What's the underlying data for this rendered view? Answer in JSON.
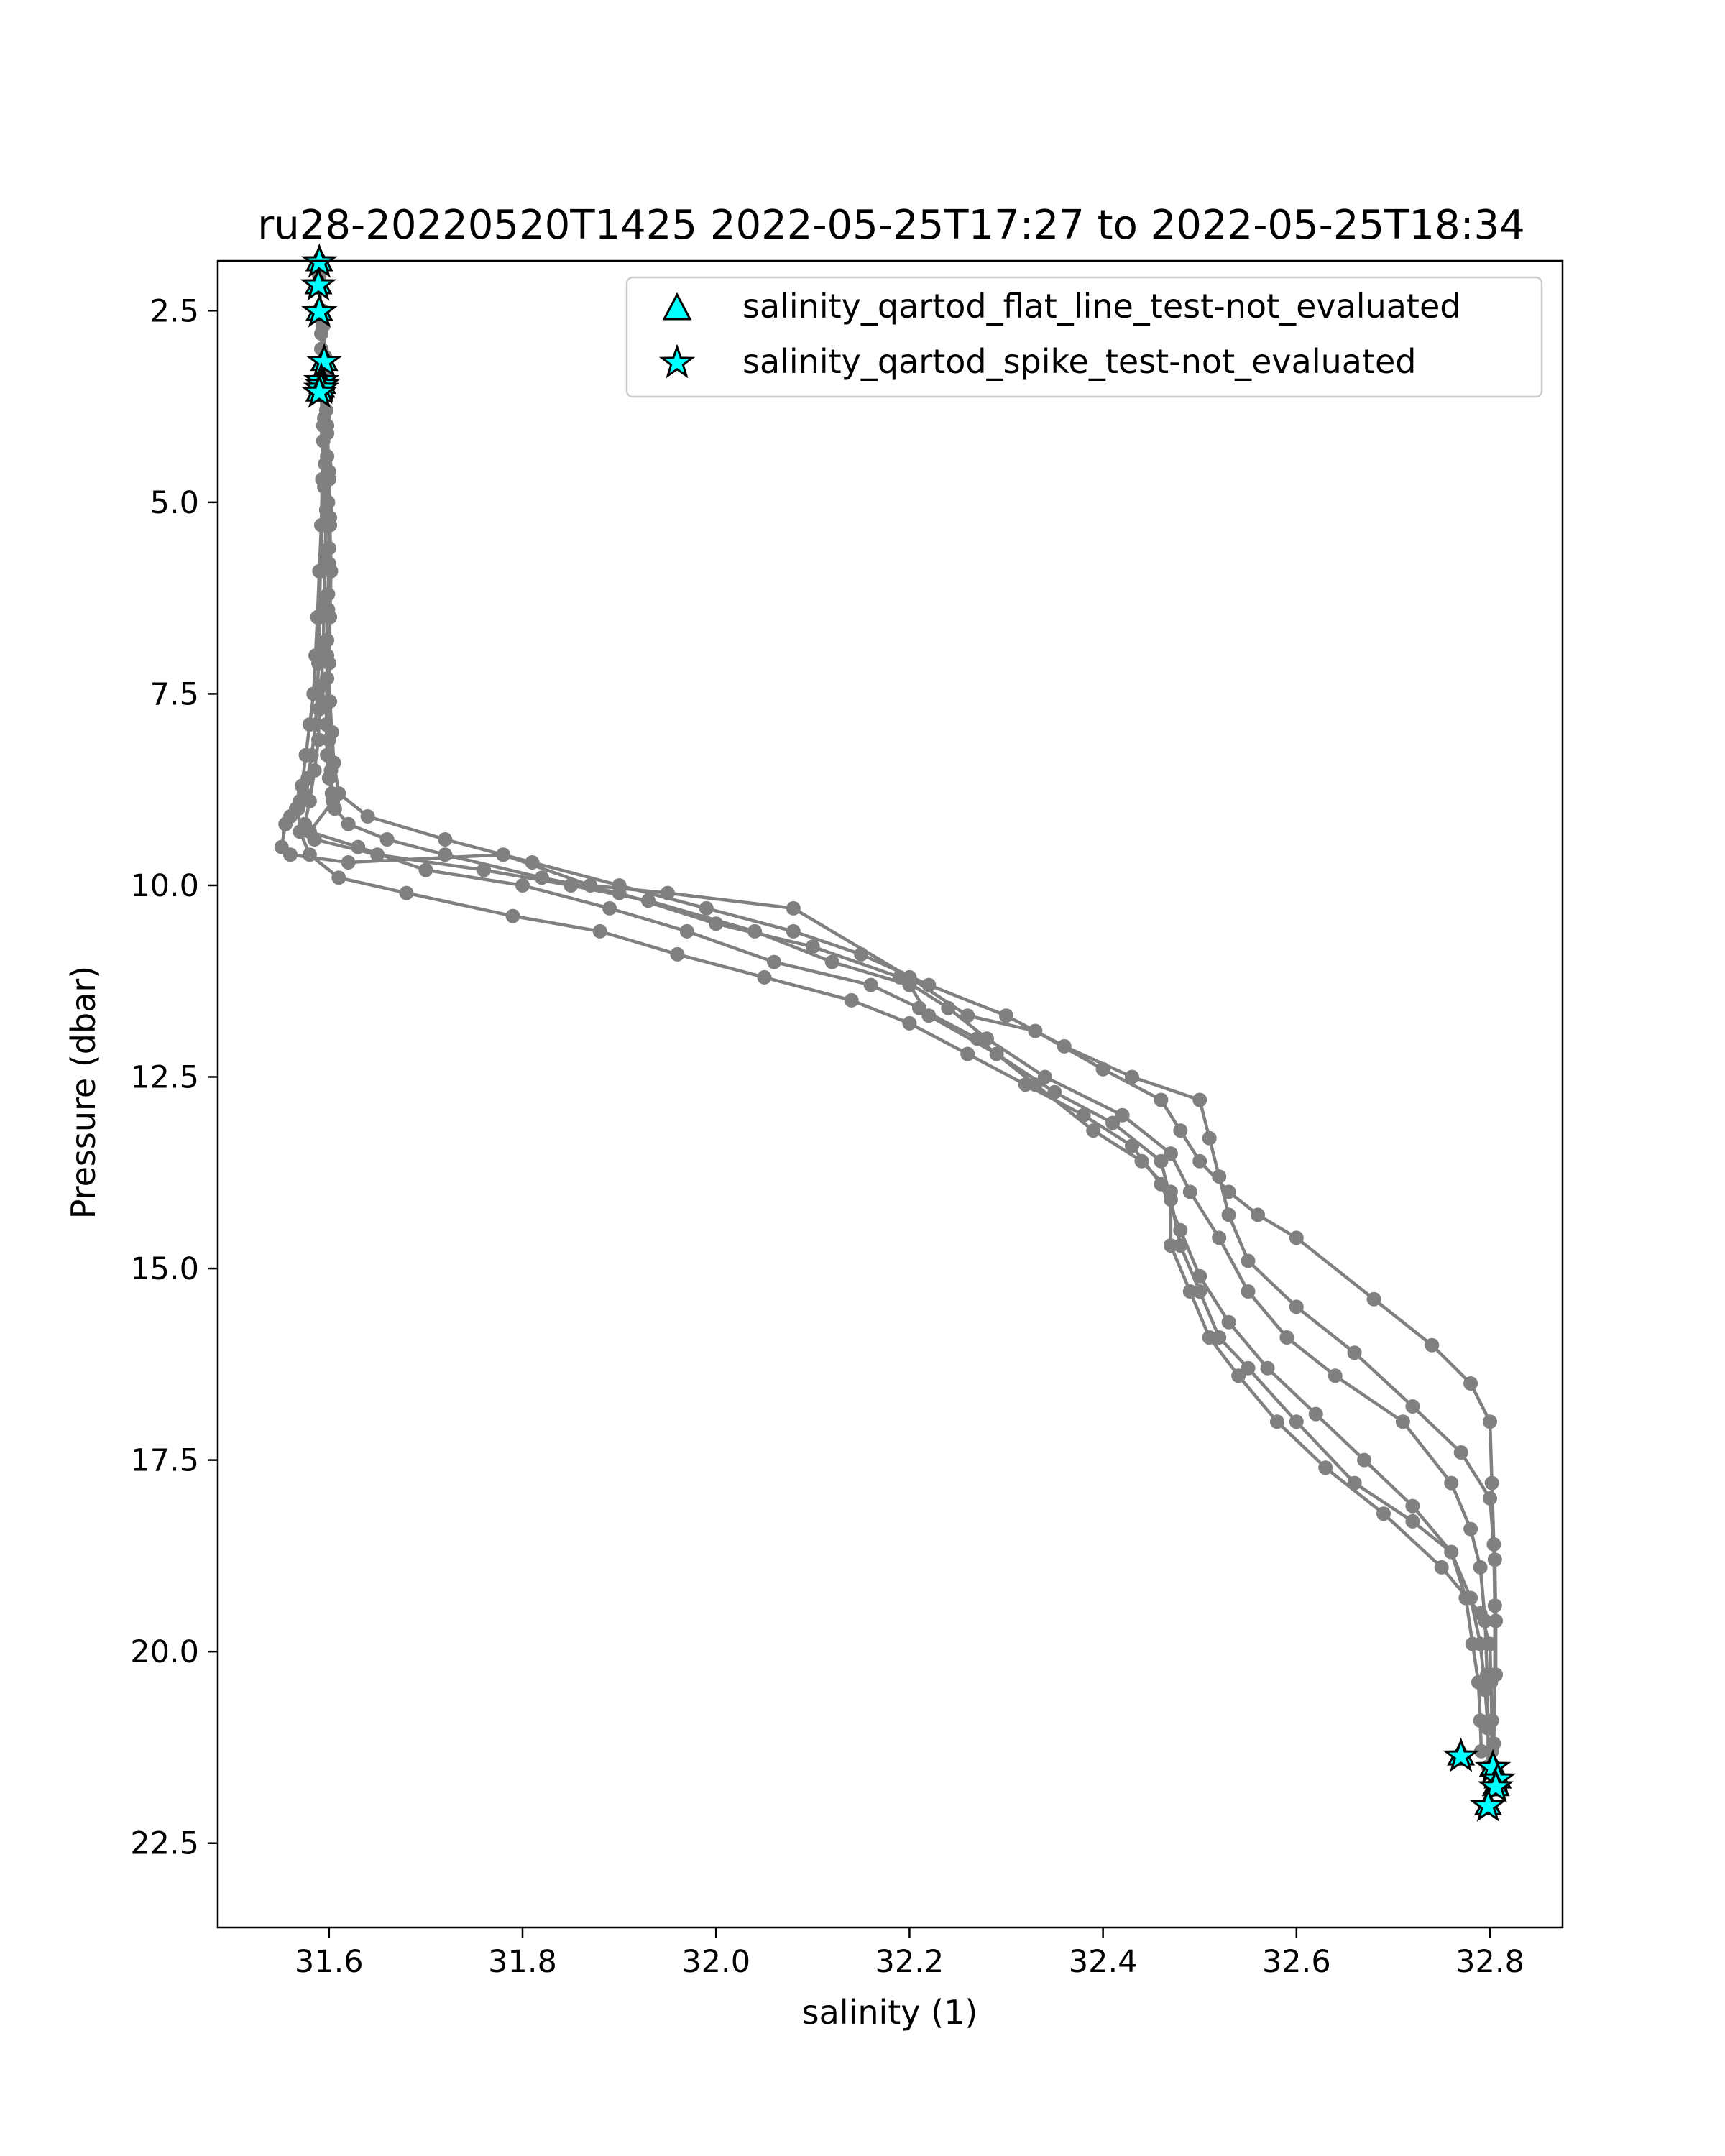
{
  "chart_data": {
    "type": "scatter",
    "title": "ru28-20220520T1425 2022-05-25T17:27 to 2022-05-25T18:34",
    "xlabel": "salinity (1)",
    "ylabel": "Pressure (dbar)",
    "xlim": [
      31.485,
      32.875
    ],
    "ylim": [
      1.85,
      23.6
    ],
    "y_inverted": true,
    "xticks": [
      31.6,
      31.8,
      32.0,
      32.2,
      32.4,
      32.6,
      32.8
    ],
    "xtick_labels": [
      "31.6",
      "31.8",
      "32.0",
      "32.2",
      "32.4",
      "32.6",
      "32.8"
    ],
    "yticks": [
      2.5,
      5.0,
      7.5,
      10.0,
      12.5,
      15.0,
      17.5,
      20.0,
      22.5
    ],
    "ytick_labels": [
      "2.5",
      "5.0",
      "7.5",
      "10.0",
      "12.5",
      "15.0",
      "17.5",
      "20.0",
      "22.5"
    ],
    "grid": false,
    "legend_position": "upper-right",
    "legend": [
      {
        "label": "salinity_qartod_flat_line_test-not_evaluated",
        "marker": "triangle",
        "color": "#00ffff"
      },
      {
        "label": "salinity_qartod_spike_test-not_evaluated",
        "marker": "star",
        "color": "#00ffff"
      }
    ],
    "profile_color": "#808080",
    "profiles": [
      {
        "salinity": [
          31.59,
          31.592,
          31.593,
          31.592,
          31.594,
          31.595,
          31.593,
          31.591,
          31.59,
          31.589,
          31.588,
          31.586,
          31.582,
          31.578,
          31.574,
          31.57,
          31.566,
          31.56,
          31.555,
          31.551,
          31.56,
          31.62,
          31.78,
          31.87,
          31.95,
          32.08,
          32.2,
          32.26,
          32.33,
          32.4,
          32.46,
          32.48,
          32.5,
          32.53,
          32.56,
          32.6,
          32.68,
          32.74,
          32.78,
          32.8,
          32.802,
          32.804,
          32.805,
          32.805,
          32.804,
          32.803
        ],
        "pressure": [
          2.05,
          2.6,
          3.2,
          3.6,
          4.2,
          4.8,
          5.3,
          5.9,
          6.5,
          7.1,
          7.5,
          7.9,
          8.3,
          8.6,
          8.8,
          8.9,
          9.0,
          9.1,
          9.2,
          9.5,
          9.6,
          9.7,
          9.6,
          10.0,
          10.1,
          10.3,
          11.2,
          11.7,
          11.9,
          12.4,
          12.8,
          13.2,
          13.6,
          14.0,
          14.3,
          14.6,
          15.4,
          16.0,
          16.5,
          17.0,
          17.8,
          18.6,
          19.4,
          20.3,
          21.2,
          21.8
        ]
      },
      {
        "salinity": [
          31.593,
          31.596,
          31.597,
          31.598,
          31.599,
          31.6,
          31.599,
          31.598,
          31.598,
          31.597,
          31.598,
          31.6,
          31.603,
          31.606,
          31.62,
          31.66,
          31.72,
          31.82,
          31.9,
          32.0,
          32.1,
          32.19,
          32.24,
          32.28,
          32.34,
          32.42,
          32.47,
          32.49,
          32.52,
          32.55,
          32.59,
          32.64,
          32.71,
          32.76,
          32.78,
          32.79,
          32.795,
          32.797,
          32.798,
          32.798
        ],
        "pressure": [
          2.5,
          3.1,
          3.8,
          4.4,
          5.0,
          5.6,
          6.2,
          6.8,
          7.3,
          7.9,
          8.3,
          8.6,
          8.8,
          9.0,
          9.2,
          9.4,
          9.6,
          9.9,
          10.1,
          10.5,
          10.8,
          11.2,
          11.6,
          12.0,
          12.5,
          13.0,
          13.5,
          14.0,
          14.6,
          15.3,
          15.9,
          16.4,
          17.0,
          17.8,
          18.4,
          18.9,
          19.6,
          20.3,
          21.0,
          21.5
        ]
      },
      {
        "salinity": [
          31.592,
          31.594,
          31.595,
          31.596,
          31.597,
          31.596,
          31.595,
          31.594,
          31.592,
          31.59,
          31.589,
          31.585,
          31.58,
          31.575,
          31.585,
          31.65,
          31.76,
          31.85,
          31.93,
          32.04,
          32.12,
          32.2,
          32.22,
          32.29,
          32.35,
          32.41,
          32.46,
          32.47,
          32.48,
          32.5,
          32.52,
          32.55,
          32.6,
          32.66,
          32.72,
          32.76,
          32.775,
          32.782,
          32.788,
          32.79,
          32.791
        ],
        "pressure": [
          3.0,
          3.4,
          3.9,
          4.5,
          5.1,
          5.7,
          6.3,
          6.9,
          7.4,
          7.7,
          8.1,
          8.5,
          8.9,
          9.2,
          9.4,
          9.6,
          9.8,
          10.0,
          10.2,
          10.6,
          11.0,
          11.3,
          11.7,
          12.2,
          12.7,
          13.1,
          13.6,
          14.1,
          14.7,
          15.3,
          15.9,
          16.3,
          17.0,
          17.8,
          18.3,
          18.7,
          19.3,
          19.9,
          20.4,
          20.9,
          21.3
        ]
      },
      {
        "salinity": [
          31.594,
          31.597,
          31.598,
          31.6,
          31.601,
          31.6,
          31.599,
          31.598,
          31.599,
          31.6,
          31.602,
          31.604,
          31.58,
          31.63,
          31.7,
          31.8,
          31.89,
          31.97,
          32.06,
          32.16,
          32.21,
          32.27,
          32.33,
          32.39,
          32.44,
          32.47,
          32.47,
          32.49,
          32.51,
          32.54,
          32.58,
          32.63,
          32.69,
          32.75,
          32.79,
          32.8,
          32.801,
          32.802,
          32.802
        ],
        "pressure": [
          2.7,
          3.3,
          4.0,
          4.6,
          5.2,
          5.8,
          6.4,
          7.0,
          7.6,
          8.1,
          8.5,
          8.9,
          9.3,
          9.5,
          9.8,
          10.0,
          10.3,
          10.6,
          11.0,
          11.3,
          11.6,
          12.0,
          12.6,
          13.2,
          13.6,
          14.0,
          14.7,
          15.3,
          15.9,
          16.4,
          17.0,
          17.6,
          18.2,
          18.9,
          19.5,
          19.9,
          20.4,
          20.9,
          21.3
        ]
      },
      {
        "salinity": [
          31.59,
          31.592,
          31.593,
          31.594,
          31.593,
          31.592,
          31.59,
          31.588,
          31.586,
          31.584,
          31.58,
          31.576,
          31.572,
          31.568,
          31.57,
          31.58,
          31.61,
          31.68,
          31.79,
          31.88,
          31.96,
          32.05,
          32.14,
          32.2,
          32.26,
          32.32,
          32.38,
          32.43,
          32.46,
          32.48,
          32.5,
          32.53,
          32.57,
          32.62,
          32.67,
          32.72,
          32.76,
          32.78,
          32.79,
          32.795,
          32.798
        ],
        "pressure": [
          2.2,
          2.8,
          3.4,
          4.0,
          4.7,
          5.3,
          5.9,
          6.5,
          7.0,
          7.5,
          7.9,
          8.3,
          8.7,
          9.0,
          9.3,
          9.6,
          9.9,
          10.1,
          10.4,
          10.6,
          10.9,
          11.2,
          11.5,
          11.8,
          12.2,
          12.6,
          13.0,
          13.4,
          13.9,
          14.5,
          15.1,
          15.7,
          16.3,
          16.9,
          17.5,
          18.1,
          18.7,
          19.3,
          19.9,
          20.5,
          21.0
        ]
      },
      {
        "salinity": [
          31.595,
          31.598,
          31.6,
          31.601,
          31.602,
          31.601,
          31.6,
          31.601,
          31.603,
          31.605,
          31.61,
          31.64,
          31.72,
          31.81,
          31.9,
          31.99,
          32.08,
          32.15,
          32.22,
          32.3,
          32.36,
          32.43,
          32.5,
          32.51,
          32.52,
          32.53,
          32.55,
          32.6,
          32.66,
          32.72,
          32.77,
          32.8,
          32.805,
          32.806,
          32.806
        ],
        "pressure": [
          3.5,
          4.1,
          4.7,
          5.3,
          5.9,
          6.5,
          7.1,
          7.6,
          8.0,
          8.4,
          8.8,
          9.1,
          9.4,
          9.7,
          10.0,
          10.3,
          10.6,
          10.9,
          11.3,
          11.7,
          12.1,
          12.5,
          12.8,
          13.3,
          13.8,
          14.3,
          14.9,
          15.5,
          16.1,
          16.8,
          17.4,
          18.0,
          18.8,
          19.6,
          20.3
        ]
      }
    ],
    "flag_points": [
      {
        "salinity": 31.59,
        "pressure": 1.85
      },
      {
        "salinity": 31.589,
        "pressure": 2.15
      },
      {
        "salinity": 31.59,
        "pressure": 2.5
      },
      {
        "salinity": 31.595,
        "pressure": 3.15
      },
      {
        "salinity": 31.592,
        "pressure": 3.4
      },
      {
        "salinity": 31.593,
        "pressure": 3.45
      },
      {
        "salinity": 31.592,
        "pressure": 3.5
      },
      {
        "salinity": 31.59,
        "pressure": 3.55
      },
      {
        "salinity": 32.77,
        "pressure": 21.35
      },
      {
        "salinity": 32.803,
        "pressure": 21.5
      },
      {
        "salinity": 32.808,
        "pressure": 21.65
      },
      {
        "salinity": 32.806,
        "pressure": 21.75
      },
      {
        "salinity": 32.798,
        "pressure": 22.0
      }
    ]
  }
}
